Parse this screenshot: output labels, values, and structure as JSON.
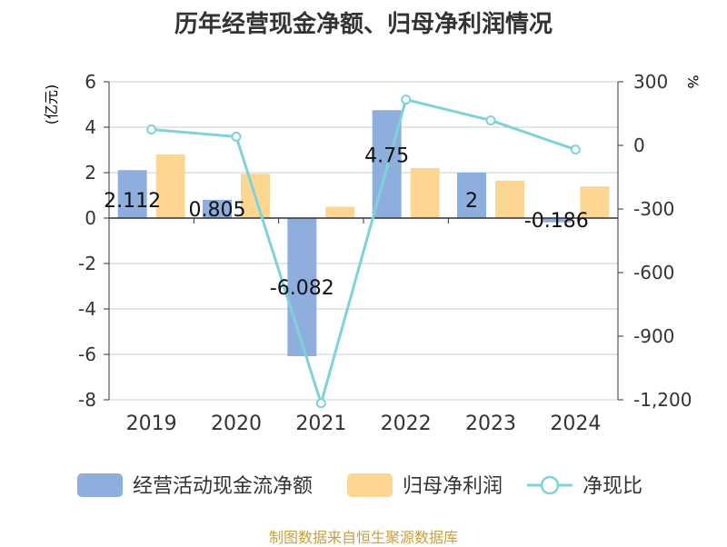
{
  "title": "历年经营现金净额、归母净利润情况",
  "source": "制图数据来自恒生聚源数据库",
  "colors": {
    "cash": "#8eaedd",
    "profit": "#fdd792",
    "ratio": "#7fd2d8",
    "axis": "#333333",
    "grid": "#cccccc",
    "unit": "#e03030",
    "source": "#c8a040"
  },
  "chart_data": {
    "type": "bar+line",
    "categories": [
      "2019",
      "2020",
      "2021",
      "2022",
      "2023",
      "2024"
    ],
    "series": [
      {
        "name": "经营活动现金流净额",
        "type": "bar",
        "axis": "left",
        "values": [
          2.112,
          0.805,
          -6.082,
          4.75,
          2,
          -0.186
        ],
        "labels": [
          "2.112",
          "0.805",
          "-6.082",
          "4.75",
          "2",
          "-0.186"
        ]
      },
      {
        "name": "归母净利润",
        "type": "bar",
        "axis": "left",
        "values": [
          2.8,
          1.95,
          0.5,
          2.2,
          1.65,
          1.4
        ]
      },
      {
        "name": "净现比",
        "type": "line",
        "axis": "right",
        "values": [
          75,
          41,
          -1216,
          216,
          118,
          -20
        ]
      }
    ],
    "y_left": {
      "label": "(亿元)",
      "range": [
        -8,
        6
      ],
      "ticks": [
        "6",
        "4",
        "2",
        "0",
        "-2",
        "-4",
        "-6",
        "-8"
      ],
      "tick_values": [
        6,
        4,
        2,
        0,
        -2,
        -4,
        -6,
        -8
      ]
    },
    "y_right": {
      "label": "%",
      "range": [
        -1200,
        300
      ],
      "ticks": [
        "300",
        "0",
        "-300",
        "-600",
        "-900",
        "-1,200"
      ],
      "tick_values": [
        300,
        0,
        -300,
        -600,
        -900,
        -1200
      ]
    },
    "legend_position": "bottom",
    "grid": true
  }
}
